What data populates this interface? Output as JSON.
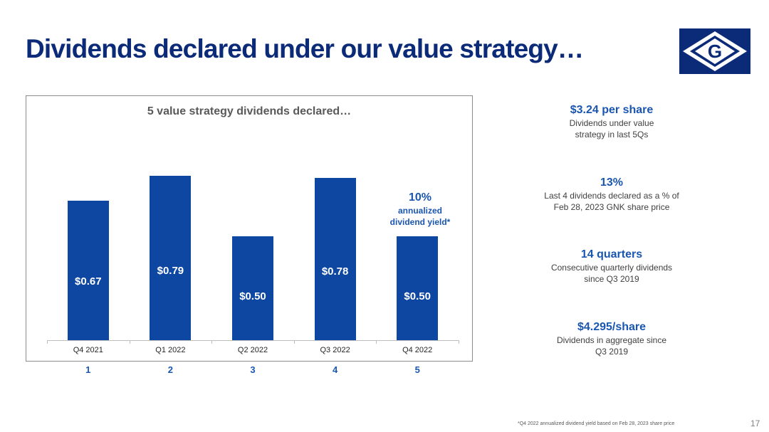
{
  "title": "Dividends declared under our value strategy…",
  "brand_color": "#0d47a1",
  "logo": {
    "name": "genco-g-logo",
    "letter": "G"
  },
  "chart_data": {
    "type": "bar",
    "title": "5 value strategy dividends declared…",
    "categories": [
      "Q4 2021",
      "Q1 2022",
      "Q2 2022",
      "Q3 2022",
      "Q4 2022"
    ],
    "values": [
      0.67,
      0.79,
      0.5,
      0.78,
      0.5
    ],
    "value_labels": [
      "$0.67",
      "$0.79",
      "$0.50",
      "$0.78",
      "$0.50"
    ],
    "sequence_labels": [
      "1",
      "2",
      "3",
      "4",
      "5"
    ],
    "ylim": [
      0,
      0.8
    ],
    "grid": false,
    "bar_color": "#0d47a1",
    "annotation": {
      "value": "10%",
      "lines": [
        "annualized",
        "dividend yield*"
      ]
    }
  },
  "stats": [
    {
      "headline": "$3.24 per share",
      "lines": [
        "Dividends under value",
        "strategy in last 5Qs"
      ]
    },
    {
      "headline": "13%",
      "lines": [
        "Last 4 dividends declared as a % of",
        "Feb 28, 2023 GNK share price"
      ]
    },
    {
      "headline": "14 quarters",
      "lines": [
        "Consecutive quarterly dividends",
        "since Q3 2019"
      ]
    },
    {
      "headline": "$4.295/share",
      "lines": [
        "Dividends in aggregate since",
        "Q3 2019"
      ]
    }
  ],
  "footnote": "*Q4 2022 annualized dividend yield based on Feb 28, 2023 share price",
  "page_number": "17"
}
